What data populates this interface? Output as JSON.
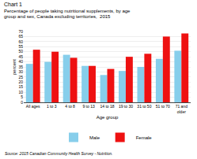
{
  "chart_data": {
    "type": "bar",
    "title": "Chart 1",
    "subtitle": "Percentage of people taking nutritional supplements, by age\ngroup and sex, Canada excluding territories,  2015",
    "x_label": "Age group",
    "y_label": "percent",
    "source": "Source: 2015 Canadian Community Health Survey - Nutrition.",
    "categories": [
      "All ages",
      "1 to 3",
      "4 to 8",
      "9 to 13",
      "14 to 18",
      "19 to 30",
      "31 to 50",
      "51 to 70",
      "71 and\nolder"
    ],
    "series": [
      {
        "name": "Male",
        "color": "#87CEEB",
        "values": [
          38,
          40,
          47,
          36,
          27,
          31,
          35,
          43,
          51
        ]
      },
      {
        "name": "Female",
        "color": "#EE1111",
        "values": [
          52,
          50,
          44,
          36,
          33,
          45,
          48,
          65,
          68
        ]
      }
    ],
    "ylim": [
      0,
      70
    ],
    "yticks": [
      0,
      5,
      10,
      15,
      20,
      25,
      30,
      35,
      40,
      45,
      50,
      55,
      60,
      65,
      70
    ],
    "grid": true,
    "legend": "bottom"
  }
}
